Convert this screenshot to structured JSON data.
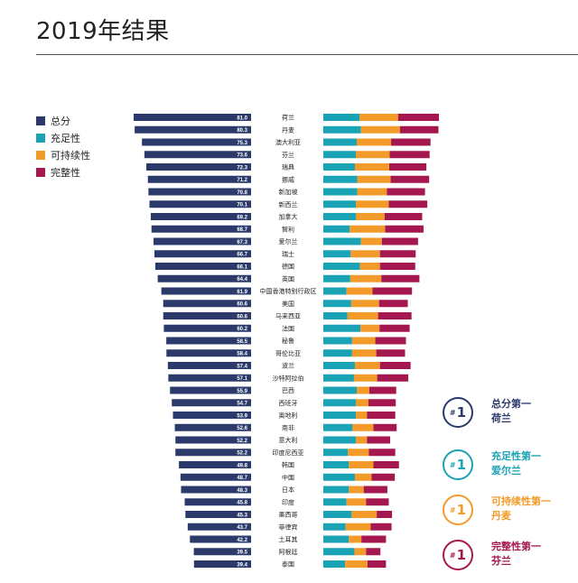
{
  "title": "2019年结果",
  "legend": [
    {
      "label": "总分",
      "color": "#2b3a6b"
    },
    {
      "label": "充足性",
      "color": "#1aa3b5"
    },
    {
      "label": "可持续性",
      "color": "#f39b2a"
    },
    {
      "label": "完整性",
      "color": "#a4184f"
    }
  ],
  "callouts": [
    {
      "badge": "1",
      "line1": "总分第一",
      "line2": "荷兰",
      "color": "#2b3a6b"
    },
    {
      "badge": "1",
      "line1": "充足性第一",
      "line2": "爱尔兰",
      "color": "#1aa3b5"
    },
    {
      "badge": "1",
      "line1": "可持续性第一",
      "line2": "丹麦",
      "color": "#f39b2a"
    },
    {
      "badge": "1",
      "line1": "完整性第一",
      "line2": "芬兰",
      "color": "#a4184f"
    }
  ],
  "chart_data": {
    "type": "bar",
    "categories": [
      "荷兰",
      "丹麦",
      "澳大利亚",
      "芬兰",
      "瑞典",
      "挪威",
      "新加坡",
      "新西兰",
      "加拿大",
      "智利",
      "爱尔兰",
      "瑞士",
      "德国",
      "英国",
      "中国香港特别行政区",
      "美国",
      "马来西亚",
      "法国",
      "秘鲁",
      "哥伦比亚",
      "波兰",
      "沙特阿拉伯",
      "巴西",
      "西班牙",
      "奥地利",
      "南非",
      "意大利",
      "印度尼西亚",
      "韩国",
      "中国",
      "日本",
      "印度",
      "墨西哥",
      "菲律宾",
      "土耳其",
      "阿根廷",
      "泰国"
    ],
    "values": [
      81.0,
      80.3,
      75.3,
      73.6,
      72.3,
      71.2,
      70.8,
      70.1,
      69.2,
      68.7,
      67.3,
      66.7,
      66.1,
      64.4,
      61.9,
      60.6,
      60.6,
      60.2,
      58.5,
      58.4,
      57.4,
      57.1,
      55.9,
      54.7,
      53.9,
      52.6,
      52.2,
      52.2,
      49.8,
      48.7,
      48.3,
      45.8,
      45.3,
      43.7,
      42.2,
      39.5,
      39.4
    ],
    "value_labels": [
      "81.0",
      "80.3",
      "75.3",
      "73.6",
      "72.3",
      "71.2",
      "70.8",
      "70.1",
      "69.2",
      "68.7",
      "67.3",
      "66.7",
      "66.1",
      "64.4",
      "61.9",
      "60.6",
      "60.6",
      "60.2",
      "58.5",
      "58.4",
      "57.4",
      "57.1",
      "55.9",
      "54.7",
      "53.9",
      "52.6",
      "52.2",
      "52.2",
      "49.8",
      "48.7",
      "48.3",
      "45.8",
      "45.3",
      "43.7",
      "42.2",
      "39.5",
      "39.4"
    ],
    "series": [
      {
        "name": "充足性",
        "values": [
          78,
          81,
          72,
          70,
          68,
          73,
          73,
          70,
          70,
          57,
          81,
          59,
          79,
          58,
          50,
          60,
          52,
          80,
          62,
          62,
          68,
          66,
          72,
          70,
          70,
          63,
          70,
          53,
          55,
          68,
          55,
          50,
          61,
          48,
          55,
          67,
          47
        ]
      },
      {
        "name": "可持续性",
        "values": [
          83,
          84,
          74,
          73,
          74,
          72,
          64,
          71,
          62,
          76,
          45,
          63,
          43,
          67,
          56,
          60,
          66,
          41,
          50,
          52,
          54,
          50,
          27,
          27,
          24,
          45,
          24,
          45,
          53,
          36,
          32,
          42,
          54,
          54,
          27,
          25,
          48
        ]
      },
      {
        "name": "完整性",
        "values": [
          88,
          83,
          85,
          86,
          80,
          83,
          82,
          83,
          81,
          83,
          78,
          77,
          76,
          82,
          85,
          62,
          72,
          65,
          66,
          62,
          66,
          67,
          58,
          59,
          61,
          50,
          50,
          57,
          55,
          50,
          51,
          49,
          33,
          45,
          53,
          31,
          40
        ]
      }
    ],
    "series_colors": [
      "#1aa3b5",
      "#f39b2a",
      "#a4184f"
    ],
    "total_color": "#2b3a6b",
    "ylim": [
      0,
      100
    ]
  }
}
